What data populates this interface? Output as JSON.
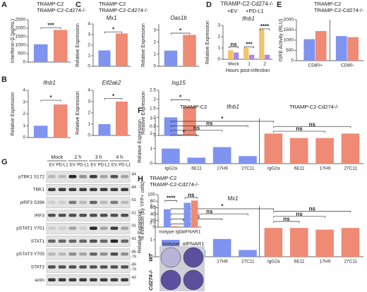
{
  "panel_labels": [
    "A",
    "B",
    "C",
    "D",
    "E",
    "F",
    "G",
    "H"
  ],
  "chart_data": [
    {
      "type": "bar",
      "ylabel": "Interferon-β (pg/mL)",
      "ylim": [
        0,
        2500
      ],
      "yticks": [
        0,
        500,
        1000,
        1500,
        2000,
        2500
      ],
      "categories": [
        null,
        null
      ],
      "series": [
        {
          "name": "TRAMP-C2",
          "color": "#7f93f0",
          "values": [
            1050,
            null
          ]
        },
        {
          "name": "TRAMP-C2-Cd274-/-",
          "color": "#ef8a74",
          "values": [
            null,
            1900
          ]
        }
      ],
      "legend": true,
      "annotations": [
        "***"
      ]
    },
    {
      "type": "bar",
      "title": "Ifnb1",
      "ylabel": "Relative Expression",
      "ylim": [
        0,
        4
      ],
      "yticks": [
        0,
        1,
        2,
        3,
        4
      ],
      "categories": [
        null,
        null
      ],
      "series": [
        {
          "name": "TRAMP-C2",
          "color": "#7f93f0",
          "values": [
            1.0,
            null
          ]
        },
        {
          "name": "TRAMP-C2-Cd274-/-",
          "color": "#ef8a74",
          "values": [
            null,
            2.8
          ]
        }
      ],
      "legend": false,
      "annotations": [
        "*"
      ]
    },
    {
      "type": "bar",
      "title": "Mx1",
      "ylabel": "Relative Expression",
      "ylim": [
        0,
        4
      ],
      "yticks": [
        0,
        1,
        2,
        3,
        4
      ],
      "categories": [
        null,
        null
      ],
      "series": [
        {
          "name": "TRAMP-C2",
          "color": "#7f93f0",
          "values": [
            1.5,
            null
          ]
        },
        {
          "name": "TRAMP-C2-Cd274-/-",
          "color": "#ef8a74",
          "values": [
            null,
            3.1
          ]
        }
      ],
      "legend": true,
      "annotations": [
        "*"
      ]
    },
    {
      "type": "bar",
      "title": "Oas1b",
      "ylabel": "Relative Expression",
      "ylim": [
        0,
        3.5
      ],
      "yticks": [
        0,
        1,
        2,
        3
      ],
      "categories": [
        null,
        null
      ],
      "series": [
        {
          "name": "TRAMP-C2",
          "color": "#7f93f0",
          "values": [
            1.3,
            null
          ]
        },
        {
          "name": "TRAMP-C2-Cd274-/-",
          "color": "#ef8a74",
          "values": [
            null,
            2.6
          ]
        }
      ],
      "legend": false,
      "annotations": [
        "*"
      ]
    },
    {
      "type": "bar",
      "title": "Eif2ak2",
      "ylabel": "Relative Expression",
      "ylim": [
        0,
        4
      ],
      "yticks": [
        0,
        1,
        2,
        3,
        4
      ],
      "categories": [
        null,
        null
      ],
      "series": [
        {
          "name": "TRAMP-C2",
          "color": "#7f93f0",
          "values": [
            1.0,
            null
          ]
        },
        {
          "name": "TRAMP-C2-Cd274-/-",
          "color": "#ef8a74",
          "values": [
            null,
            3.0
          ]
        }
      ],
      "legend": false,
      "annotations": [
        "*"
      ]
    },
    {
      "type": "bar",
      "title": "Isg15",
      "ylabel": "Relative Expression",
      "ylim": [
        0,
        2.5
      ],
      "yticks": [
        0,
        0.5,
        1,
        1.5,
        2,
        2.5
      ],
      "categories": [
        null,
        null
      ],
      "series": [
        {
          "name": "TRAMP-C2",
          "color": "#7f93f0",
          "values": [
            1.0,
            null
          ]
        },
        {
          "name": "TRAMP-C2-Cd274-/-",
          "color": "#ef8a74",
          "values": [
            null,
            1.6
          ]
        }
      ],
      "legend": false,
      "annotations": [
        "*"
      ]
    },
    {
      "type": "bar",
      "title": "TRAMP-C2-Cd274-/-",
      "subtitle": "Ifnb1",
      "ylabel": "Relative Expression",
      "xlabel": "Hours post-infection",
      "ylim": [
        0,
        3
      ],
      "yticks": [
        0,
        1,
        2,
        3
      ],
      "categories": [
        "Mock",
        "1",
        "2"
      ],
      "series": [
        {
          "name": "+EV",
          "color": "#f3c26b",
          "values": [
            0.8,
            1.0,
            2.7
          ]
        },
        {
          "name": "+PD-L1",
          "color": "#a58ae6",
          "values": [
            0.6,
            0.4,
            0.4
          ]
        }
      ],
      "legend": true,
      "annotations": [
        "ns",
        "***",
        "****"
      ]
    },
    {
      "type": "bar",
      "ylabel": "ISRE Activity (RLU)",
      "ylim": [
        0,
        2000
      ],
      "yticks": [
        0,
        500,
        1000,
        1500,
        2000
      ],
      "categories": [
        "CD80+",
        "CD80-"
      ],
      "series": [
        {
          "name": "TRAMP-C2",
          "color": "#7f93f0",
          "values": [
            1050,
            1200
          ]
        },
        {
          "name": "TRAMP-C2-Cd274-/-",
          "color": "#ef8a74",
          "values": [
            1450,
            1150
          ]
        }
      ],
      "legend": true,
      "annotations": []
    },
    {
      "type": "bar",
      "title": "Ifnb1",
      "ylabel": "Relative Expression",
      "ylim": [
        0,
        3
      ],
      "yticks": [
        0,
        1,
        2,
        3
      ],
      "categories": [
        "IgG2a",
        "6E11",
        "17H9",
        "27C11",
        "IgG2a",
        "6E11",
        "17H9",
        "27C11"
      ],
      "series": [
        {
          "name": "TRAMP-C2",
          "color": "#7f93f0",
          "values": [
            1.0,
            0.4,
            1.1,
            0.5,
            null,
            null,
            null,
            null
          ]
        },
        {
          "name": "TRAMP-C2-Cd274-/-",
          "color": "#ef8a74",
          "values": [
            null,
            null,
            null,
            null,
            2.0,
            1.7,
            1.7,
            2.0
          ]
        }
      ],
      "legend": true,
      "annotations": [
        "*",
        "ns",
        "ns",
        "*",
        "ns",
        "ns"
      ]
    },
    {
      "type": "bar",
      "title": "Mx1",
      "ylabel": "Relative Expression",
      "ylim": [
        0,
        3
      ],
      "yticks": [
        0,
        1,
        2,
        3
      ],
      "categories": [
        "IgG2a",
        "6E11",
        "17H9",
        "27C11",
        "IgG2a",
        "6E11",
        "17H9",
        "27C11"
      ],
      "series": [
        {
          "name": "TRAMP-C2",
          "color": "#7f93f0",
          "values": [
            1.0,
            0.4,
            1.05,
            0.4,
            null,
            null,
            null,
            null
          ]
        },
        {
          "name": "TRAMP-C2-Cd274-/-",
          "color": "#ef8a74",
          "values": [
            null,
            null,
            null,
            null,
            1.7,
            1.7,
            1.6,
            1.7
          ]
        }
      ],
      "legend": false,
      "annotations": [
        "*",
        "ns",
        "ns",
        "*",
        "ns",
        "ns",
        "ns"
      ]
    },
    {
      "type": "bar",
      "ylabel": "% infection (by YFP+ cells)",
      "ylim": [
        0,
        100
      ],
      "yticks": [
        0,
        20,
        40,
        60,
        80,
        100
      ],
      "categories": [
        "Isotype IgG",
        "αIFNAR1"
      ],
      "series": [
        {
          "name": "TRAMP-C2",
          "color": "#7f93f0",
          "values": [
            55,
            75
          ]
        },
        {
          "name": "TRAMP-C2-Cd274-/-",
          "color": "#ef8a74",
          "values": [
            3,
            82
          ]
        }
      ],
      "legend": true,
      "annotations": [
        "****",
        "ns"
      ]
    }
  ],
  "blot": {
    "time_points": [
      "Mock",
      "2 h",
      "3 h",
      "4 h"
    ],
    "lanes": [
      "EV",
      "PD-L1"
    ],
    "rows": [
      "pTBK1 S172",
      "TBK1",
      "pIRF3 S396",
      "IRF3",
      "pSTAT1 Y701",
      "STAT1",
      "pSTAT3 Y705",
      "STAT3",
      "actin"
    ],
    "markers": [
      [
        "-84"
      ],
      [
        "-84"
      ],
      [
        "-51"
      ],
      [
        "-51"
      ],
      [
        "-91"
      ],
      [
        "-91"
      ],
      [
        "-86",
        "-79"
      ],
      [
        "-86",
        "-79"
      ],
      [
        "-42"
      ]
    ]
  },
  "plates": {
    "columns": [
      "Isotype",
      "αIFNAR1"
    ],
    "rows": [
      "WT",
      "Cd274-/-"
    ]
  }
}
